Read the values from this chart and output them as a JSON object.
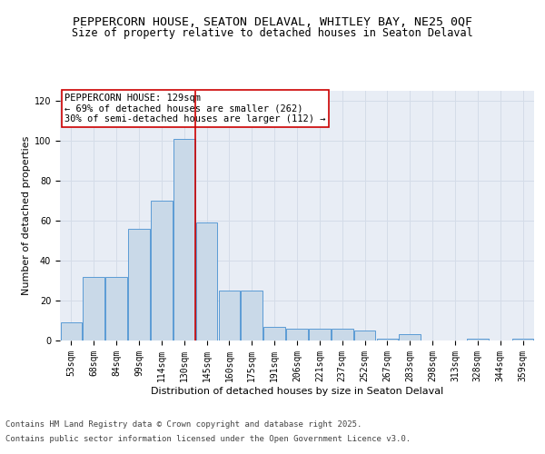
{
  "title_line1": "PEPPERCORN HOUSE, SEATON DELAVAL, WHITLEY BAY, NE25 0QF",
  "title_line2": "Size of property relative to detached houses in Seaton Delaval",
  "xlabel": "Distribution of detached houses by size in Seaton Delaval",
  "ylabel": "Number of detached properties",
  "categories": [
    "53sqm",
    "68sqm",
    "84sqm",
    "99sqm",
    "114sqm",
    "130sqm",
    "145sqm",
    "160sqm",
    "175sqm",
    "191sqm",
    "206sqm",
    "221sqm",
    "237sqm",
    "252sqm",
    "267sqm",
    "283sqm",
    "298sqm",
    "313sqm",
    "328sqm",
    "344sqm",
    "359sqm"
  ],
  "values": [
    9,
    32,
    32,
    56,
    70,
    101,
    59,
    25,
    25,
    7,
    6,
    6,
    6,
    5,
    1,
    3,
    0,
    0,
    1,
    0,
    1
  ],
  "bar_color": "#c9d9e8",
  "bar_edge_color": "#5b9bd5",
  "vline_x": 5.5,
  "vline_color": "#cc0000",
  "annotation_text": "PEPPERCORN HOUSE: 129sqm\n← 69% of detached houses are smaller (262)\n30% of semi-detached houses are larger (112) →",
  "annotation_box_color": "white",
  "annotation_box_edge": "#cc0000",
  "ylim": [
    0,
    125
  ],
  "yticks": [
    0,
    20,
    40,
    60,
    80,
    100,
    120
  ],
  "grid_color": "#d4dce8",
  "bg_color": "#e8edf5",
  "footer_line1": "Contains HM Land Registry data © Crown copyright and database right 2025.",
  "footer_line2": "Contains public sector information licensed under the Open Government Licence v3.0.",
  "title_fontsize": 9.5,
  "subtitle_fontsize": 8.5,
  "axis_label_fontsize": 8,
  "tick_fontsize": 7,
  "annotation_fontsize": 7.5,
  "footer_fontsize": 6.5
}
